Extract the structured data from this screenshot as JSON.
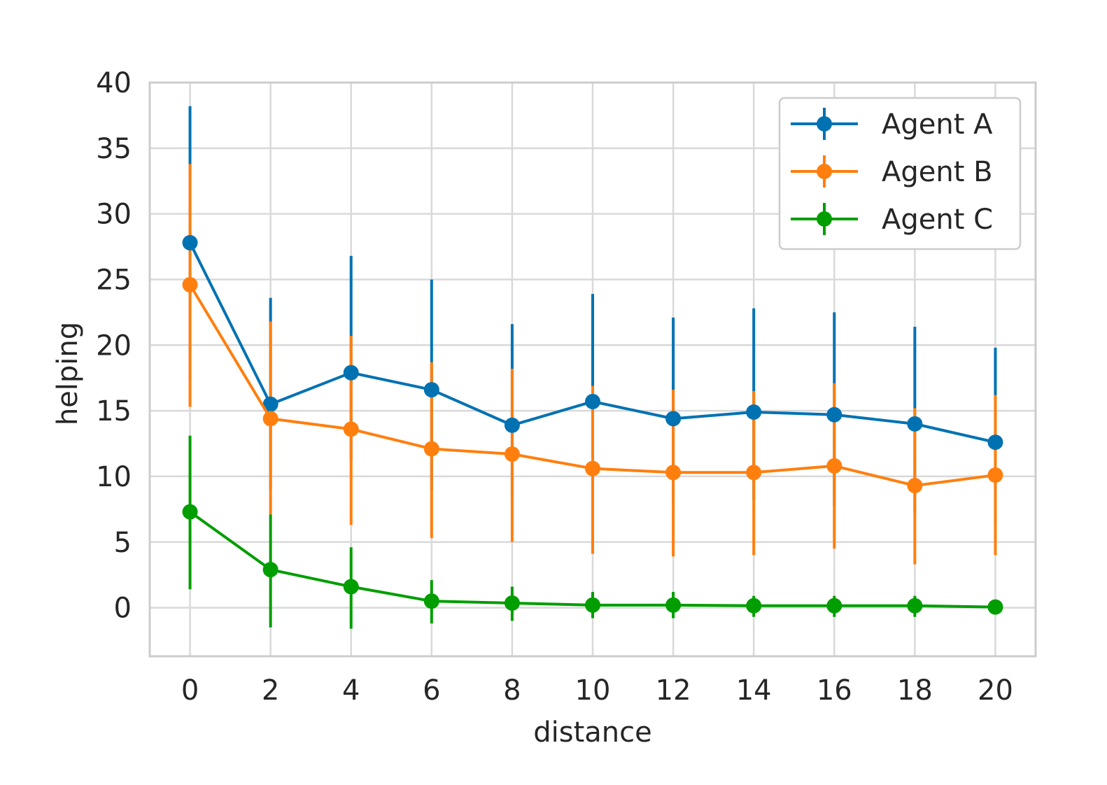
{
  "chart_data": {
    "type": "line",
    "title": "",
    "xlabel": "distance",
    "ylabel": "helping",
    "xlim": [
      -1,
      21
    ],
    "ylim": [
      -3.7,
      40
    ],
    "xticks": [
      0,
      2,
      4,
      6,
      8,
      10,
      12,
      14,
      16,
      18,
      20
    ],
    "yticks": [
      0,
      5,
      10,
      15,
      20,
      25,
      30,
      35,
      40
    ],
    "grid": true,
    "legend": "top-right",
    "x": [
      0,
      2,
      4,
      6,
      8,
      10,
      12,
      14,
      16,
      18,
      20
    ],
    "series": [
      {
        "name": "Agent A",
        "color": "#0072b2",
        "values": [
          27.8,
          15.5,
          17.9,
          16.6,
          13.9,
          15.7,
          14.4,
          14.9,
          14.7,
          14.0,
          12.6
        ],
        "err_low": [
          17.4,
          9.0,
          11.2,
          9.0,
          8.4,
          8.2,
          8.0,
          8.2,
          7.8,
          7.2,
          6.4
        ],
        "err_high": [
          38.2,
          23.6,
          26.8,
          25.0,
          21.6,
          23.9,
          22.1,
          22.8,
          22.5,
          21.4,
          19.8
        ]
      },
      {
        "name": "Agent B",
        "color": "#ff7f0e",
        "values": [
          24.6,
          14.4,
          13.6,
          12.1,
          11.7,
          10.6,
          10.3,
          10.3,
          10.8,
          9.3,
          10.1
        ],
        "err_low": [
          15.3,
          7.1,
          6.3,
          5.3,
          5.0,
          4.1,
          3.9,
          4.0,
          4.5,
          3.3,
          4.0
        ],
        "err_high": [
          33.8,
          21.8,
          20.7,
          18.7,
          18.2,
          16.9,
          16.6,
          16.5,
          17.1,
          15.2,
          16.2
        ]
      },
      {
        "name": "Agent C",
        "color": "#009e00",
        "values": [
          7.3,
          2.9,
          1.6,
          0.5,
          0.35,
          0.2,
          0.2,
          0.15,
          0.15,
          0.15,
          0.05
        ],
        "err_low": [
          1.4,
          -1.5,
          -1.6,
          -1.2,
          -1.0,
          -0.8,
          -0.8,
          -0.7,
          -0.7,
          -0.7,
          -0.5
        ],
        "err_high": [
          13.1,
          7.1,
          4.6,
          2.1,
          1.6,
          1.2,
          1.2,
          0.9,
          0.9,
          0.9,
          0.5
        ]
      }
    ]
  }
}
